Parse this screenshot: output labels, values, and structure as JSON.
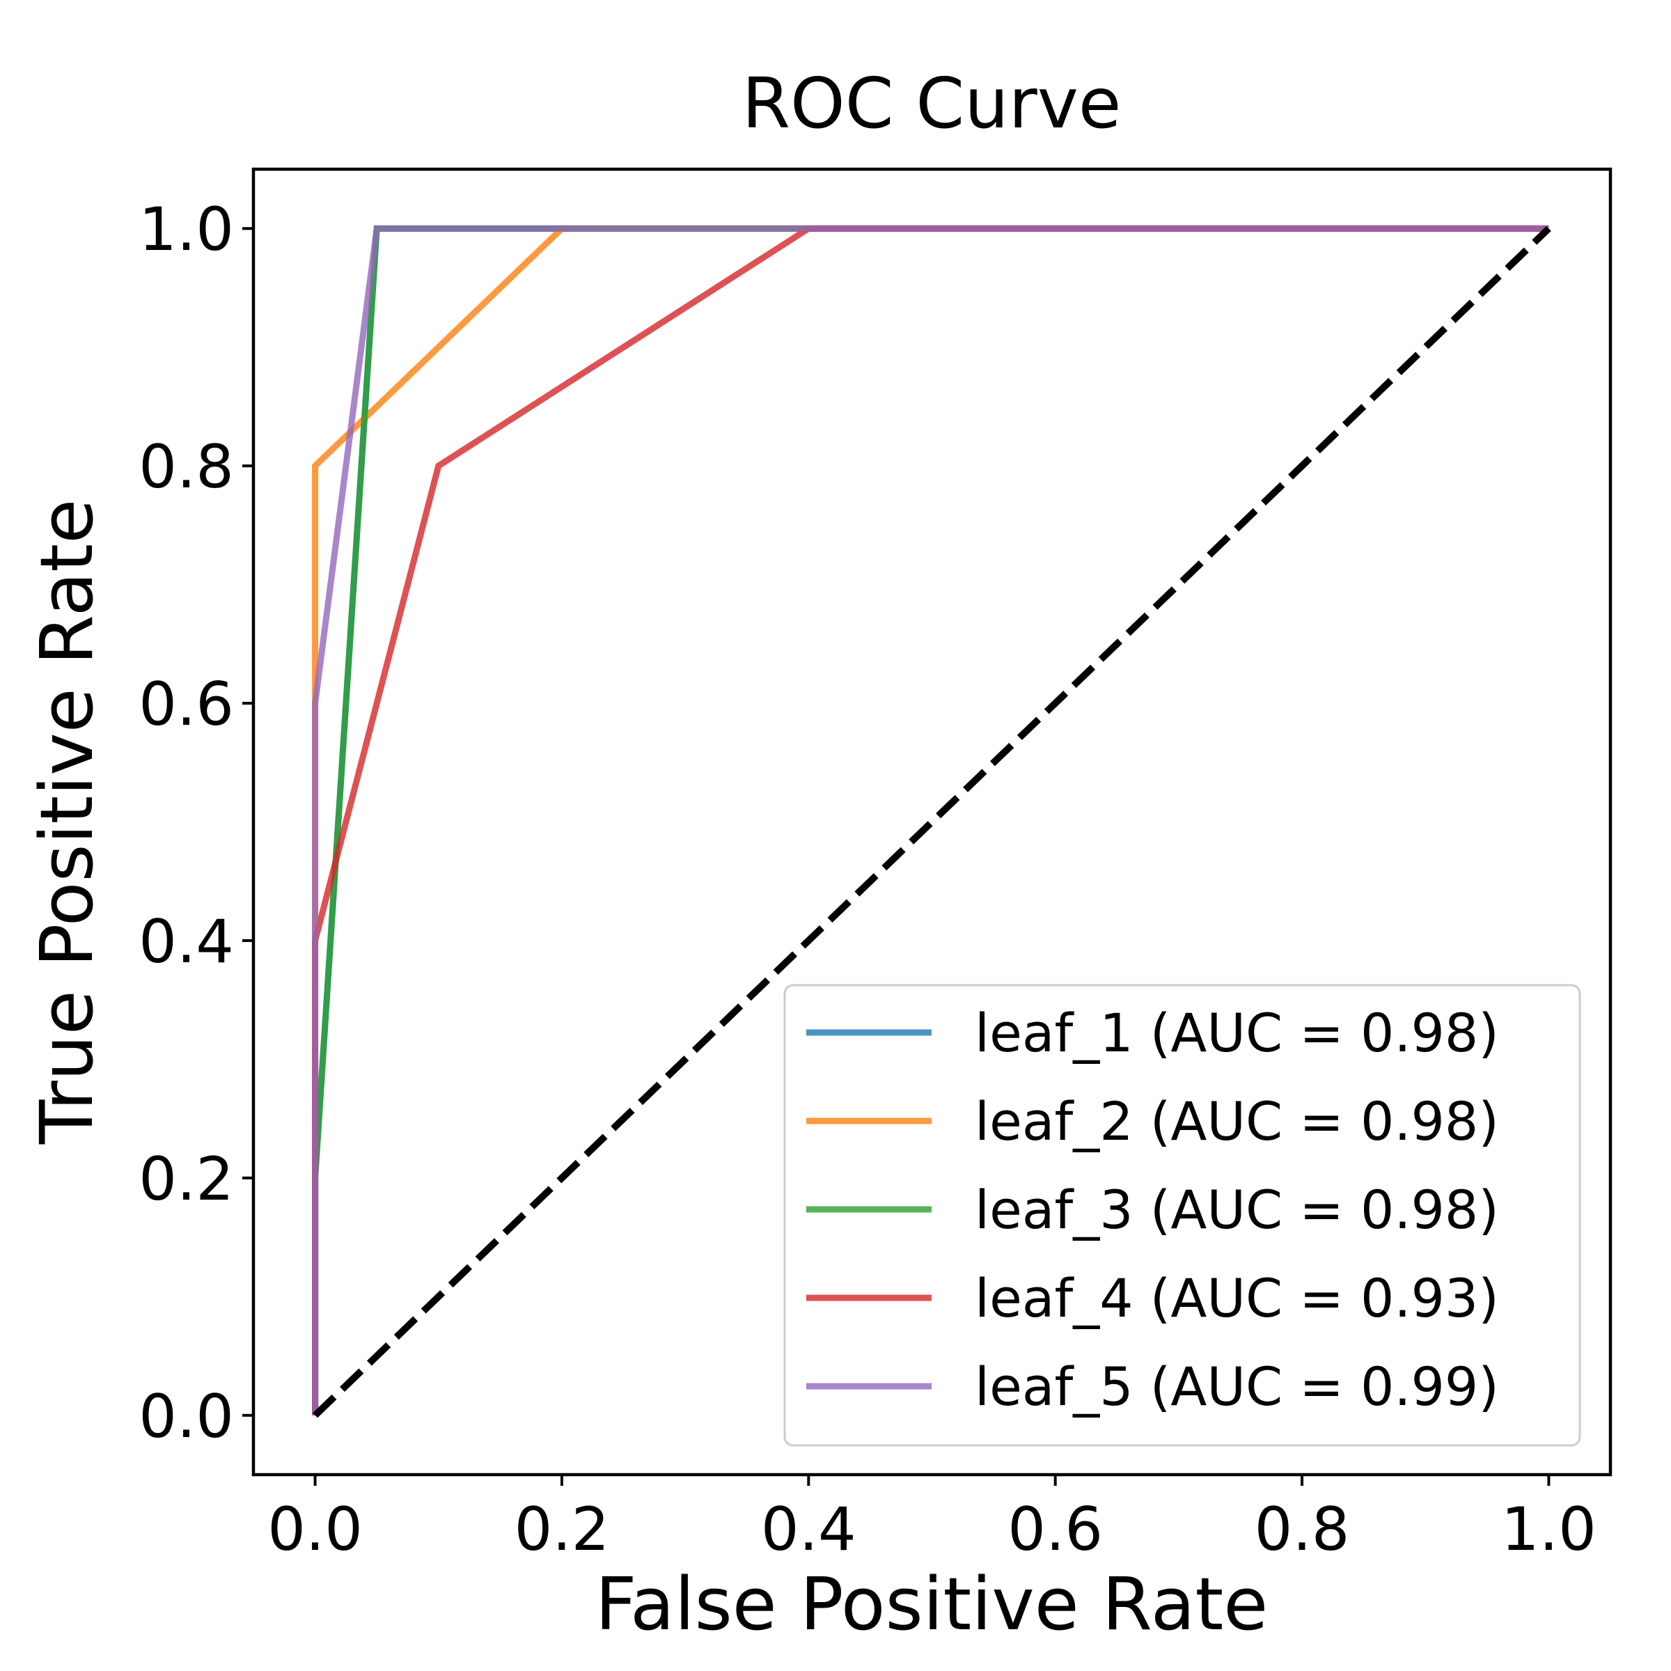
{
  "chart_data": {
    "type": "line",
    "title": "ROC Curve",
    "xlabel": "False Positive Rate",
    "ylabel": "True Positive Rate",
    "xlim": [
      -0.05,
      1.05
    ],
    "ylim": [
      -0.05,
      1.05
    ],
    "xticks": [
      0.0,
      0.2,
      0.4,
      0.6,
      0.8,
      1.0
    ],
    "yticks": [
      0.0,
      0.2,
      0.4,
      0.6,
      0.8,
      1.0
    ],
    "xtick_labels": [
      "0.0",
      "0.2",
      "0.4",
      "0.6",
      "0.8",
      "1.0"
    ],
    "ytick_labels": [
      "0.0",
      "0.2",
      "0.4",
      "0.6",
      "0.8",
      "1.0"
    ],
    "grid": false,
    "legend_position": "bottom-right",
    "series": [
      {
        "name": "leaf_1",
        "label": "leaf_1 (AUC = 0.98)",
        "color": "#1f77b4",
        "x": [
          0.0,
          0.0,
          0.05,
          1.0
        ],
        "y": [
          0.0,
          0.2,
          1.0,
          1.0
        ]
      },
      {
        "name": "leaf_2",
        "label": "leaf_2 (AUC = 0.98)",
        "color": "#ff7f0e",
        "x": [
          0.0,
          0.0,
          0.2,
          1.0
        ],
        "y": [
          0.0,
          0.8,
          1.0,
          1.0
        ]
      },
      {
        "name": "leaf_3",
        "label": "leaf_3 (AUC = 0.98)",
        "color": "#2ca02c",
        "x": [
          0.0,
          0.0,
          0.05,
          1.0
        ],
        "y": [
          0.0,
          0.2,
          1.0,
          1.0
        ]
      },
      {
        "name": "leaf_4",
        "label": "leaf_4 (AUC = 0.93)",
        "color": "#d62728",
        "x": [
          0.0,
          0.0,
          0.1,
          0.4,
          1.0
        ],
        "y": [
          0.0,
          0.4,
          0.8,
          1.0,
          1.0
        ]
      },
      {
        "name": "leaf_5",
        "label": "leaf_5 (AUC = 0.99)",
        "color": "#9467bd",
        "x": [
          0.0,
          0.0,
          0.05,
          1.0
        ],
        "y": [
          0.0,
          0.6,
          1.0,
          1.0
        ]
      }
    ],
    "reference_line": {
      "name": "chance",
      "color": "#000000",
      "style": "dashed",
      "x": [
        0.0,
        1.0
      ],
      "y": [
        0.0,
        1.0
      ]
    }
  }
}
